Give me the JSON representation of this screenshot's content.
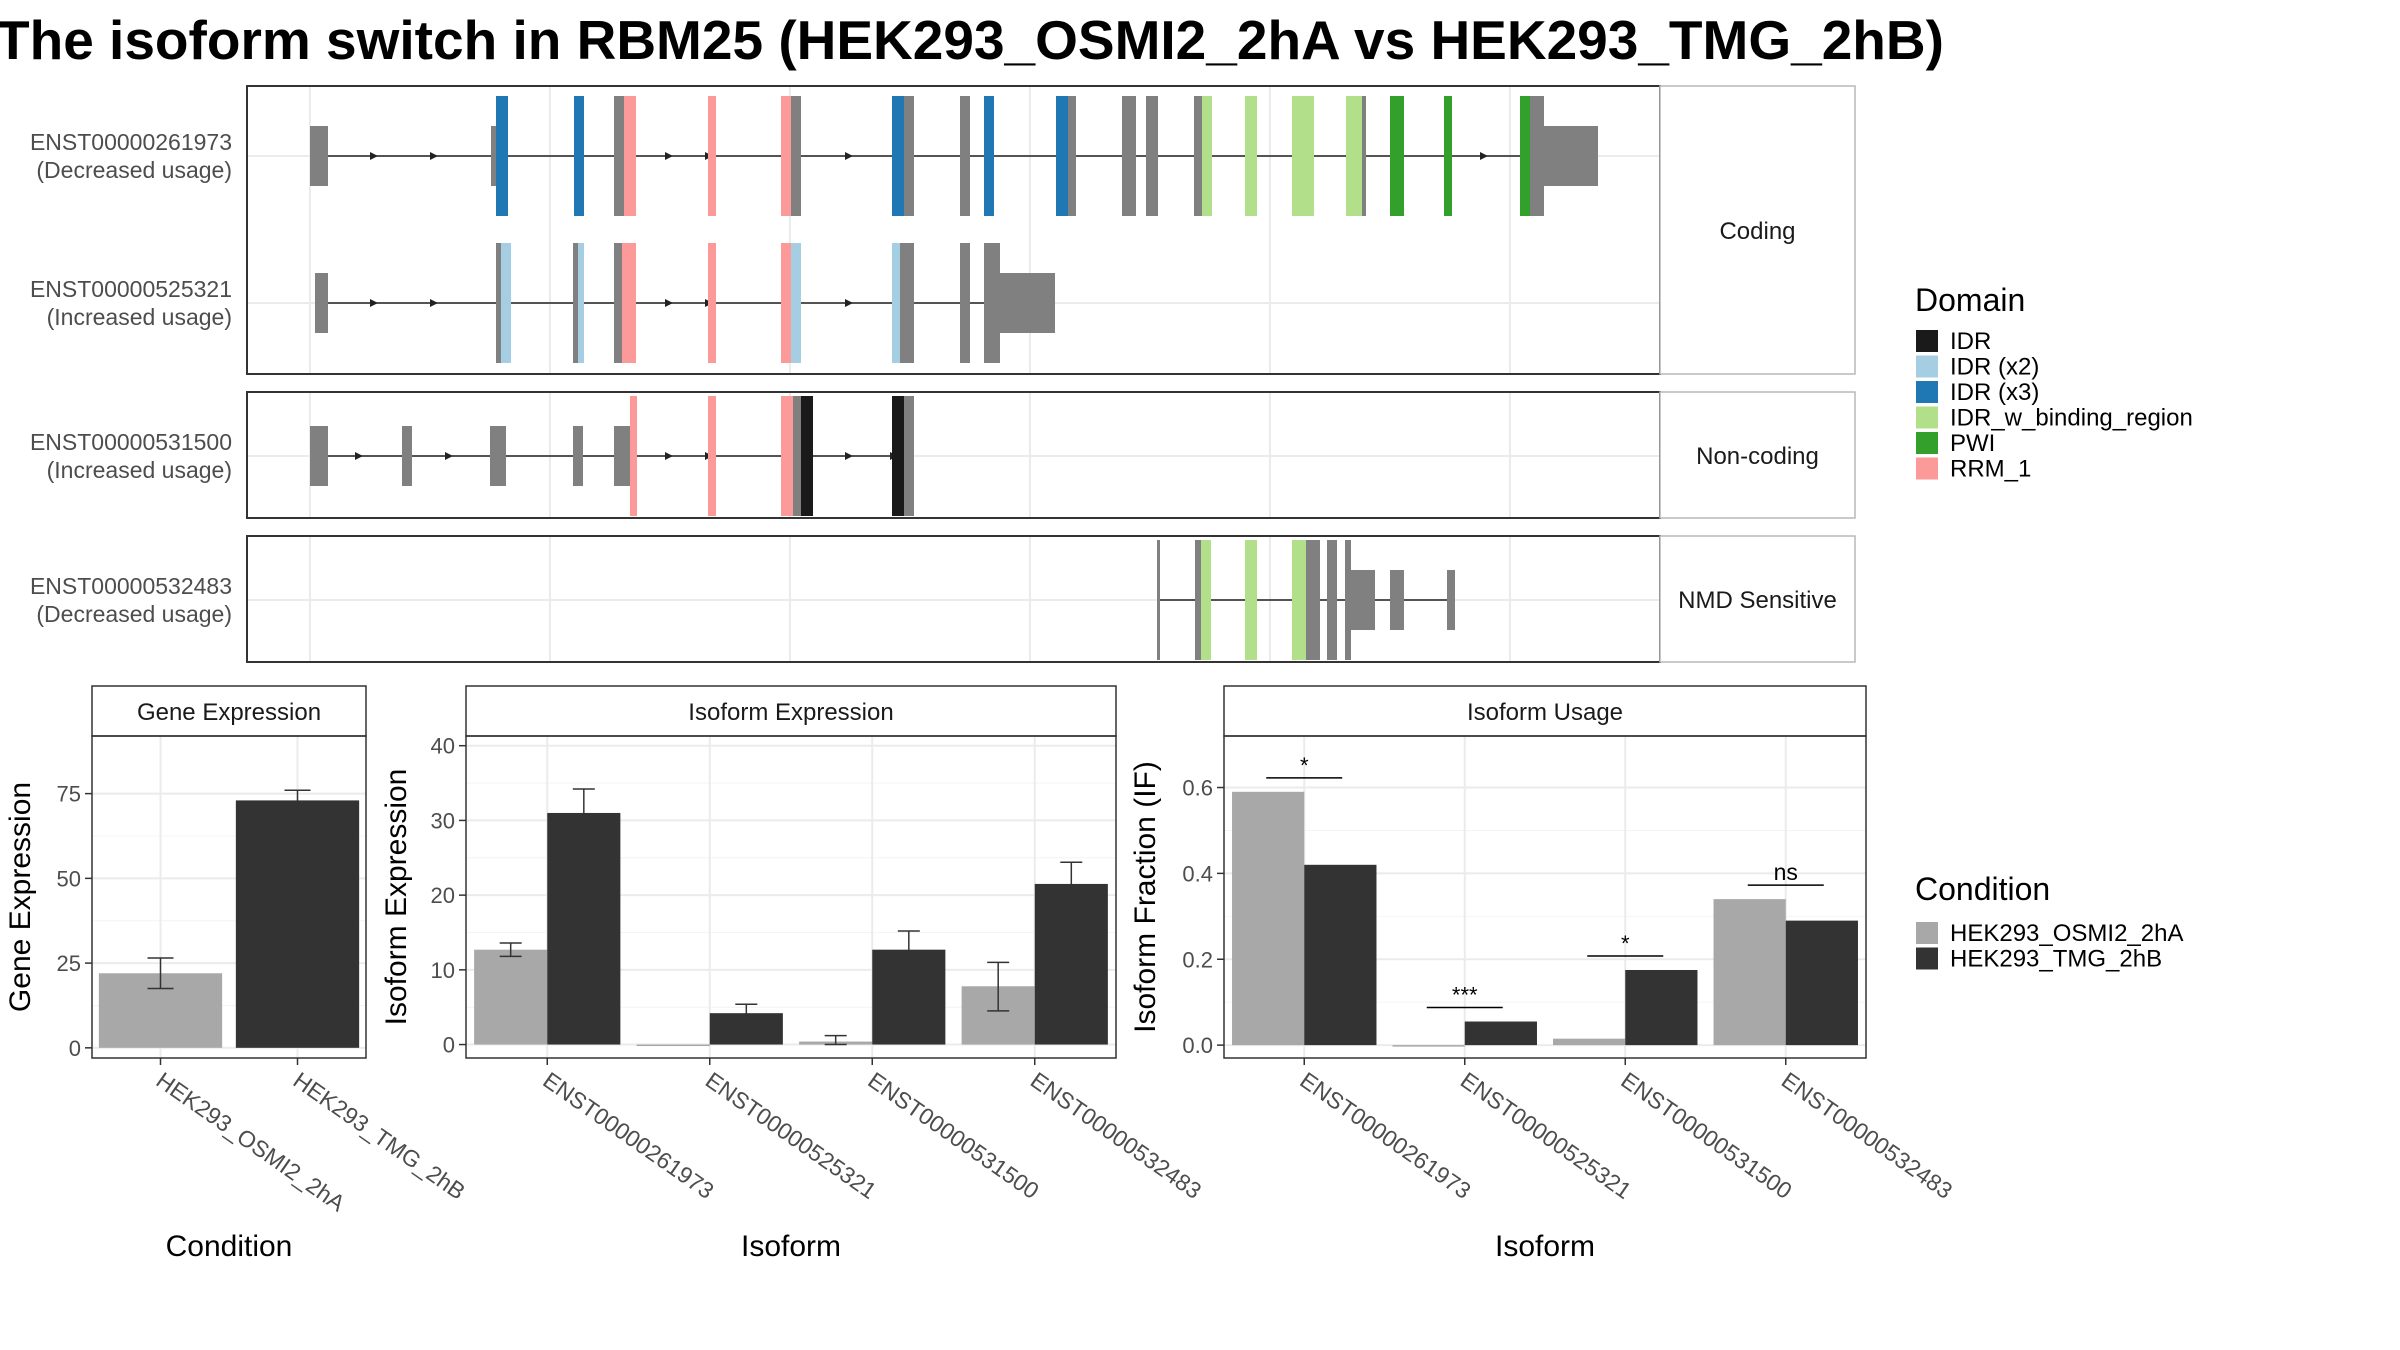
{
  "title": "The isoform switch in RBM25 (HEK293_OSMI2_2hA vs HEK293_TMG_2hB)",
  "domain_colors": {
    "IDR": "#1a1a1a",
    "IDR (x2)": "#a6cee3",
    "IDR (x3)": "#1f78b4",
    "IDR_w_binding_region": "#b2df8a",
    "PWI": "#33a02c",
    "RRM_1": "#fb9a99"
  },
  "condition_colors": {
    "HEK293_OSMI2_2hA": "#a8a8a8",
    "HEK293_TMG_2hB": "#333333"
  },
  "gene_structure": {
    "facets": [
      {
        "label": "Coding",
        "transcripts": [
          {
            "id": "ENST00000261973",
            "usage": "(Decreased usage)"
          },
          {
            "id": "ENST00000525321",
            "usage": "(Increased usage)"
          }
        ]
      },
      {
        "label": "Non-coding",
        "transcripts": [
          {
            "id": "ENST00000531500",
            "usage": "(Increased usage)"
          }
        ]
      },
      {
        "label": "NMD Sensitive",
        "transcripts": [
          {
            "id": "ENST00000532483",
            "usage": "(Decreased usage)"
          }
        ]
      }
    ]
  },
  "legend_domain": {
    "title": "Domain",
    "items": [
      "IDR",
      "IDR (x2)",
      "IDR (x3)",
      "IDR_w_binding_region",
      "PWI",
      "RRM_1"
    ]
  },
  "legend_condition": {
    "title": "Condition",
    "items": [
      "HEK293_OSMI2_2hA",
      "HEK293_TMG_2hB"
    ]
  },
  "chart_data": [
    {
      "type": "bar",
      "title": "Gene Expression",
      "xlabel": "Condition",
      "ylabel": "Gene Expression",
      "categories": [
        "HEK293_OSMI2_2hA",
        "HEK293_TMG_2hB"
      ],
      "values": [
        22,
        73
      ],
      "errors": [
        [
          17.5,
          26.5
        ],
        [
          70,
          76
        ]
      ],
      "yticks": [
        0,
        25,
        50,
        75
      ],
      "ylim": [
        -3,
        92
      ]
    },
    {
      "type": "bar",
      "title": "Isoform Expression",
      "xlabel": "Isoform",
      "ylabel": "Isoform Expression",
      "categories": [
        "ENST00000261973",
        "ENST00000525321",
        "ENST00000531500",
        "ENST00000532483"
      ],
      "series": [
        {
          "name": "HEK293_OSMI2_2hA",
          "values": [
            12.7,
            0,
            0.4,
            7.8
          ],
          "errors": [
            [
              11.8,
              13.6
            ],
            [
              0,
              0
            ],
            [
              0,
              1.2
            ],
            [
              4.5,
              11
            ]
          ]
        },
        {
          "name": "HEK293_TMG_2hB",
          "values": [
            31,
            4.2,
            12.7,
            21.5
          ],
          "errors": [
            [
              27.6,
              34.2
            ],
            [
              3.1,
              5.4
            ],
            [
              10.2,
              15.2
            ],
            [
              18.5,
              24.4
            ]
          ]
        }
      ],
      "yticks": [
        0,
        10,
        20,
        30,
        40
      ],
      "ylim": [
        -1.8,
        41.3
      ]
    },
    {
      "type": "bar",
      "title": "Isoform Usage",
      "xlabel": "Isoform",
      "ylabel": "Isoform Fraction (IF)",
      "categories": [
        "ENST00000261973",
        "ENST00000525321",
        "ENST00000531500",
        "ENST00000532483"
      ],
      "series": [
        {
          "name": "HEK293_OSMI2_2hA",
          "values": [
            0.59,
            0,
            0.015,
            0.34
          ]
        },
        {
          "name": "HEK293_TMG_2hB",
          "values": [
            0.42,
            0.055,
            0.175,
            0.29
          ]
        }
      ],
      "significance": [
        "*",
        "***",
        "*",
        "ns"
      ],
      "yticks": [
        0.0,
        0.2,
        0.4,
        0.6
      ],
      "ylim": [
        -0.03,
        0.72
      ]
    }
  ]
}
